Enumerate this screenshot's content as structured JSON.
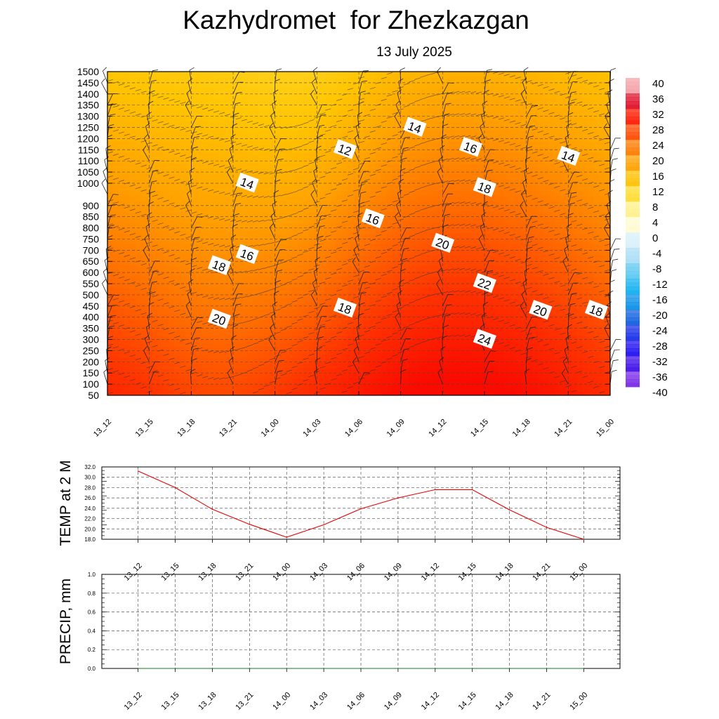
{
  "header": {
    "title": "Kazhydromet  for Zhezkazgan",
    "subtitle": "13 July 2025"
  },
  "chart_data": [
    {
      "type": "heatmap",
      "title": "Kazhydromet  for Zhezkazgan",
      "subtitle": "13 July 2025",
      "x": [
        "13_12",
        "13_15",
        "13_18",
        "13_21",
        "14_00",
        "14_03",
        "14_06",
        "14_09",
        "14_12",
        "14_15",
        "14_18",
        "14_21",
        "15_00"
      ],
      "y_ticks": [
        50,
        100,
        150,
        200,
        250,
        300,
        350,
        400,
        450,
        500,
        550,
        600,
        650,
        700,
        750,
        800,
        850,
        900,
        1000,
        1050,
        1100,
        1150,
        1200,
        1250,
        1300,
        1350,
        1400,
        1450,
        1500
      ],
      "colorbar_ticks": [
        40,
        36,
        32,
        28,
        24,
        20,
        16,
        12,
        8,
        4,
        0,
        -4,
        -8,
        -12,
        -16,
        -20,
        -24,
        -28,
        -32,
        -36,
        -40
      ],
      "contour_labels": [
        {
          "x": "14_05",
          "y": 1150,
          "value": "12"
        },
        {
          "x": "14_10",
          "y": 1250,
          "value": "14"
        },
        {
          "x": "13_22",
          "y": 1000,
          "value": "14"
        },
        {
          "x": "14_14",
          "y": 1160,
          "value": "16"
        },
        {
          "x": "14_21",
          "y": 1120,
          "value": "14"
        },
        {
          "x": "14_15",
          "y": 980,
          "value": "18"
        },
        {
          "x": "14_07",
          "y": 840,
          "value": "16"
        },
        {
          "x": "13_22",
          "y": 680,
          "value": "16"
        },
        {
          "x": "14_12",
          "y": 730,
          "value": "20"
        },
        {
          "x": "13_20",
          "y": 630,
          "value": "18"
        },
        {
          "x": "14_15",
          "y": 550,
          "value": "22"
        },
        {
          "x": "14_05",
          "y": 440,
          "value": "18"
        },
        {
          "x": "14_19",
          "y": 430,
          "value": "20"
        },
        {
          "x": "14_23",
          "y": 430,
          "value": "18"
        },
        {
          "x": "13_20",
          "y": 390,
          "value": "20"
        },
        {
          "x": "14_15",
          "y": 300,
          "value": "24"
        }
      ],
      "grid": true
    },
    {
      "type": "line",
      "ylabel": "TEMP at 2 M",
      "categories": [
        "13_12",
        "13_15",
        "13_18",
        "13_21",
        "14_00",
        "14_03",
        "14_06",
        "14_09",
        "14_12",
        "14_15",
        "14_18",
        "14_21",
        "15_00"
      ],
      "values": [
        31.2,
        28.0,
        23.8,
        20.9,
        18.4,
        20.8,
        23.9,
        26.0,
        27.6,
        27.6,
        23.7,
        20.3,
        18.0
      ],
      "ylim": [
        18.0,
        32.0
      ],
      "y_ticks": [
        "32.0",
        "30.0",
        "28.0",
        "26.0",
        "24.0",
        "22.0",
        "20.0",
        "18.0"
      ],
      "color": "#e60000",
      "grid": true
    },
    {
      "type": "line",
      "ylabel": "PRECIP, mm",
      "categories": [
        "13_12",
        "13_15",
        "13_18",
        "13_21",
        "14_00",
        "14_03",
        "14_06",
        "14_09",
        "14_12",
        "14_15",
        "14_18",
        "14_21",
        "15_00"
      ],
      "values": [
        0,
        0,
        0,
        0,
        0,
        0,
        0,
        0,
        0,
        0,
        0,
        0,
        0
      ],
      "ylim": [
        0.0,
        1.0
      ],
      "y_ticks": [
        "1.0",
        "0.8",
        "0.6",
        "0.4",
        "0.2",
        "0.0"
      ],
      "color": "#1a7a1a",
      "grid": true
    }
  ]
}
